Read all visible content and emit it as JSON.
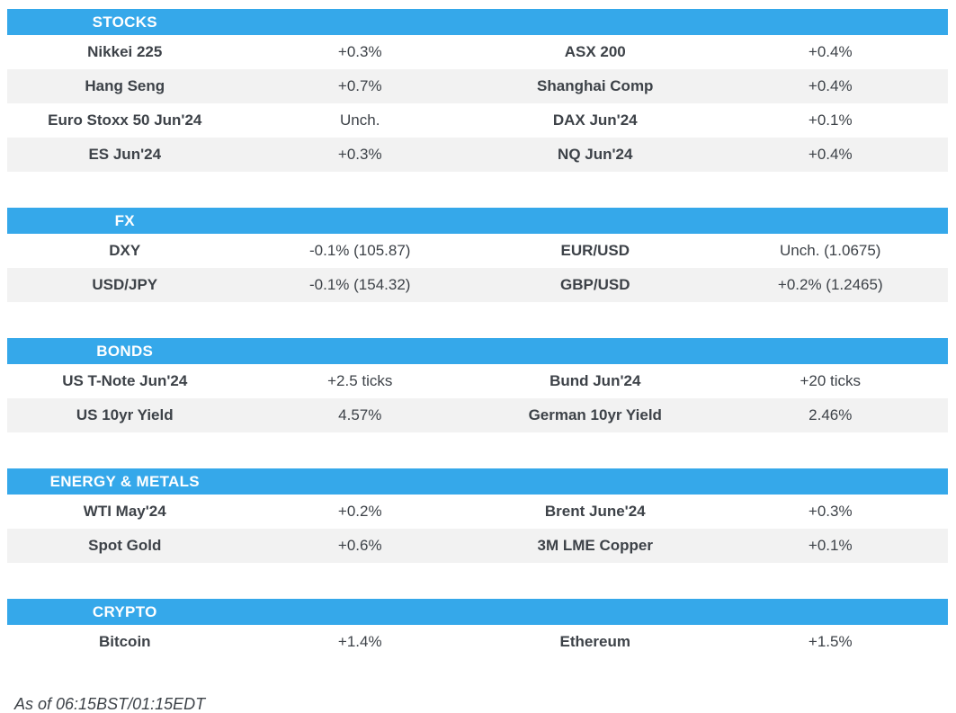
{
  "colors": {
    "accent": "#35A8EA",
    "row_alt": "#F2F2F2",
    "text": "#3D4248",
    "header_text": "#FFFFFF"
  },
  "sections": [
    {
      "title": "STOCKS",
      "rows": [
        [
          "Nikkei 225",
          "+0.3%",
          "ASX 200",
          "+0.4%"
        ],
        [
          "Hang Seng",
          "+0.7%",
          "Shanghai Comp",
          "+0.4%"
        ],
        [
          "Euro Stoxx 50 Jun'24",
          "Unch.",
          "DAX Jun'24",
          "+0.1%"
        ],
        [
          "ES Jun'24",
          "+0.3%",
          "NQ Jun'24",
          "+0.4%"
        ]
      ]
    },
    {
      "title": "FX",
      "rows": [
        [
          "DXY",
          "-0.1% (105.87)",
          "EUR/USD",
          "Unch. (1.0675)"
        ],
        [
          "USD/JPY",
          "-0.1% (154.32)",
          "GBP/USD",
          "+0.2% (1.2465)"
        ]
      ]
    },
    {
      "title": "BONDS",
      "rows": [
        [
          "US T-Note Jun'24",
          "+2.5 ticks",
          "Bund Jun'24",
          "+20 ticks"
        ],
        [
          "US 10yr Yield",
          "4.57%",
          "German 10yr Yield",
          "2.46%"
        ]
      ]
    },
    {
      "title": "ENERGY & METALS",
      "rows": [
        [
          "WTI May'24",
          "+0.2%",
          "Brent June'24",
          "+0.3%"
        ],
        [
          "Spot Gold",
          "+0.6%",
          "3M LME Copper",
          "+0.1%"
        ]
      ]
    },
    {
      "title": "CRYPTO",
      "rows": [
        [
          "Bitcoin",
          "+1.4%",
          "Ethereum",
          "+1.5%"
        ]
      ]
    }
  ],
  "footer": {
    "as_of": "As of 06:15BST/01:15EDT"
  }
}
